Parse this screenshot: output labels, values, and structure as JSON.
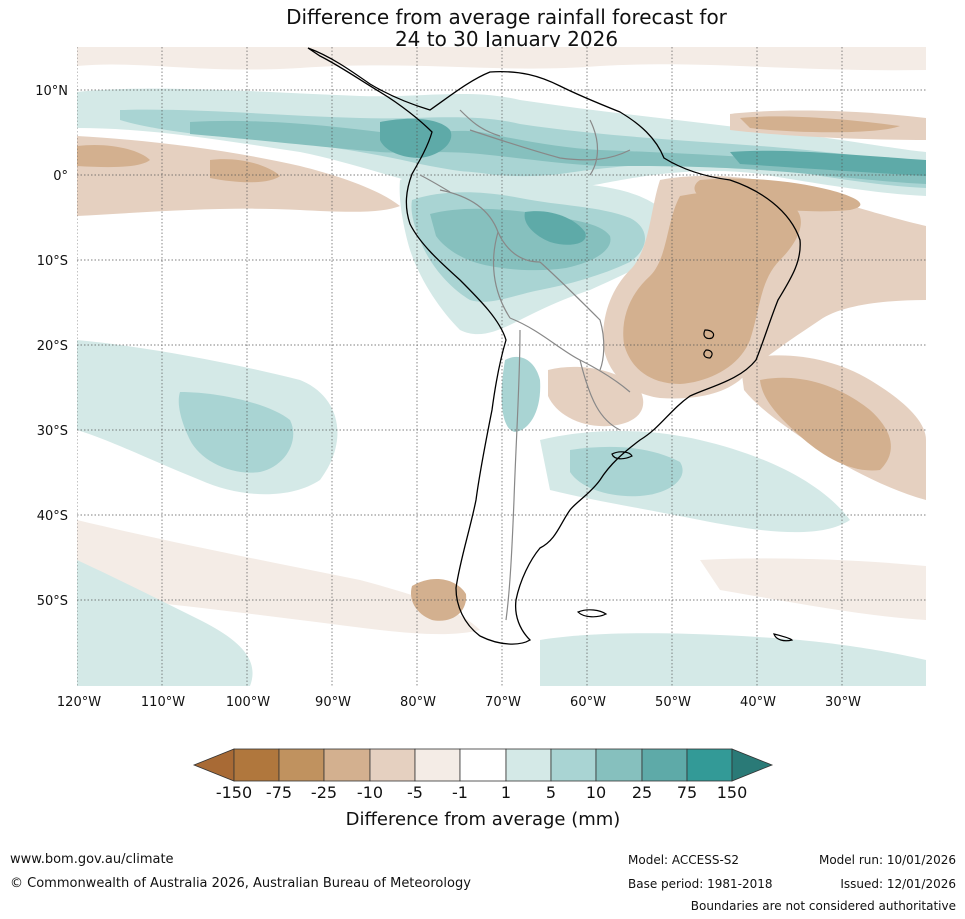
{
  "title": {
    "line1": "Difference from average rainfall forecast for",
    "line2": "24 to 30 January 2026"
  },
  "map": {
    "lat_labels": [
      "10°N",
      "0°",
      "10°S",
      "20°S",
      "30°S",
      "40°S",
      "50°S"
    ],
    "lon_labels": [
      "120°W",
      "110°W",
      "100°W",
      "90°W",
      "80°W",
      "70°W",
      "60°W",
      "50°W",
      "40°W",
      "30°W"
    ]
  },
  "legend": {
    "title": "Difference from average (mm)",
    "labels": [
      "-150",
      "-75",
      "-25",
      "-10",
      "-5",
      "-1",
      "1",
      "5",
      "10",
      "25",
      "75",
      "150"
    ],
    "colors": [
      "#a86a35",
      "#b0773d",
      "#c0925f",
      "#d3b08f",
      "#e5d0c0",
      "#f4ece6",
      "#ffffff",
      "#d4e9e7",
      "#a9d4d3",
      "#86c0be",
      "#5eaaa8",
      "#339a97",
      "#2a7a77"
    ]
  },
  "footer": {
    "website": "www.bom.gov.au/climate",
    "copyright": "© Commonwealth of Australia 2026, Australian Bureau of Meteorology",
    "model": "Model: ACCESS-S2",
    "base_period": "Base period: 1981-2018",
    "model_run": "Model run: 10/01/2026",
    "issued": "Issued: 12/01/2026",
    "disclaimer": "Boundaries are not considered authoritative"
  }
}
